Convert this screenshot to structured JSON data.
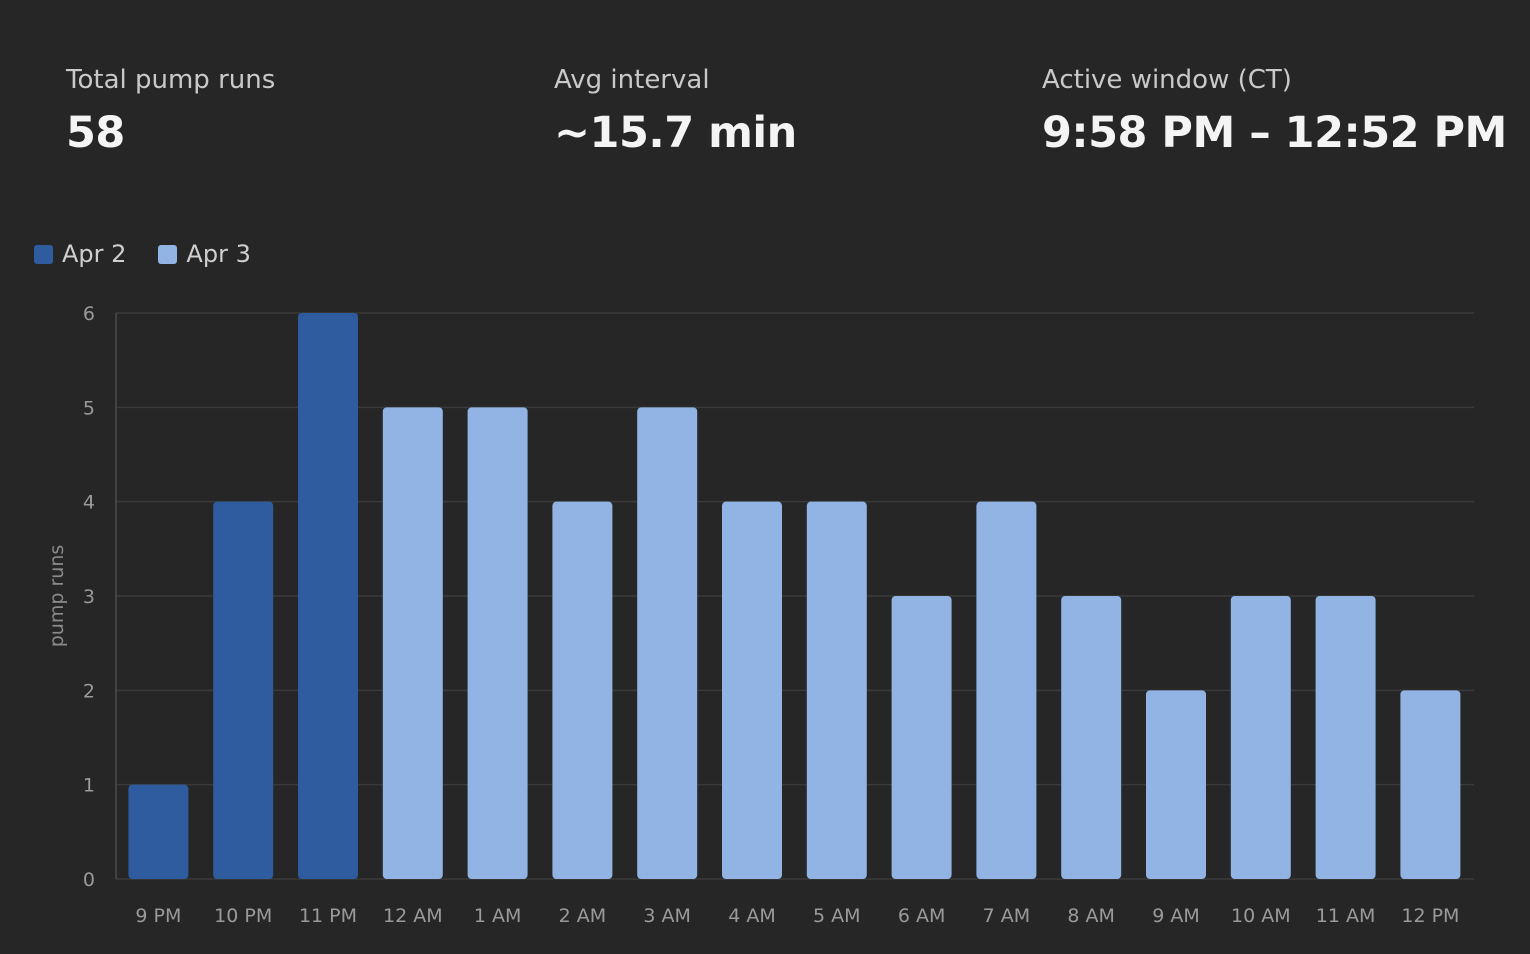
{
  "stats": {
    "total_runs_label": "Total pump runs",
    "total_runs_value": "58",
    "avg_interval_label": "Avg interval",
    "avg_interval_value": "~15.7 min",
    "active_window_label": "Active window (CT)",
    "active_window_value": "9:58 PM – 12:52 PM"
  },
  "legend": {
    "series_a": "Apr 2",
    "series_b": "Apr 3"
  },
  "colors": {
    "background": "#262626",
    "apr2": "#2e5c9e",
    "apr3": "#91b4e4",
    "grid": "#3a3a3a"
  },
  "chart_data": {
    "type": "bar",
    "xlabel": "",
    "ylabel": "pump runs",
    "ylim": [
      0,
      6
    ],
    "yticks": [
      0,
      1,
      2,
      3,
      4,
      5,
      6
    ],
    "grid": true,
    "legend_position": "top-left",
    "categories": [
      "9 PM",
      "10 PM",
      "11 PM",
      "12 AM",
      "1 AM",
      "2 AM",
      "3 AM",
      "4 AM",
      "5 AM",
      "6 AM",
      "7 AM",
      "8 AM",
      "9 AM",
      "10 AM",
      "11 AM",
      "12 PM"
    ],
    "values": [
      1,
      4,
      6,
      5,
      5,
      4,
      5,
      4,
      4,
      3,
      4,
      3,
      2,
      3,
      3,
      2
    ],
    "series_by_bar": [
      "Apr 2",
      "Apr 2",
      "Apr 2",
      "Apr 3",
      "Apr 3",
      "Apr 3",
      "Apr 3",
      "Apr 3",
      "Apr 3",
      "Apr 3",
      "Apr 3",
      "Apr 3",
      "Apr 3",
      "Apr 3",
      "Apr 3",
      "Apr 3"
    ]
  }
}
